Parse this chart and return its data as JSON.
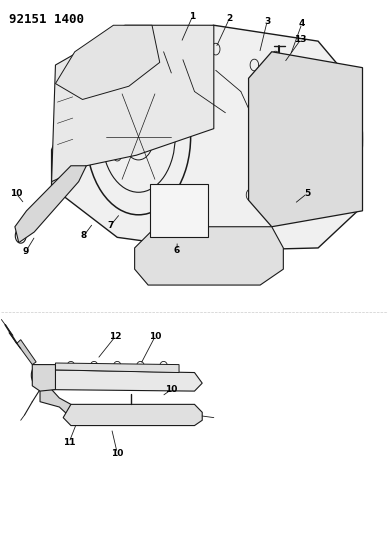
{
  "title_code": "92151 1400",
  "background_color": "#ffffff",
  "line_color": "#1a1a1a",
  "callout_color": "#000000",
  "figsize": [
    3.89,
    5.33
  ],
  "dpi": 100
}
